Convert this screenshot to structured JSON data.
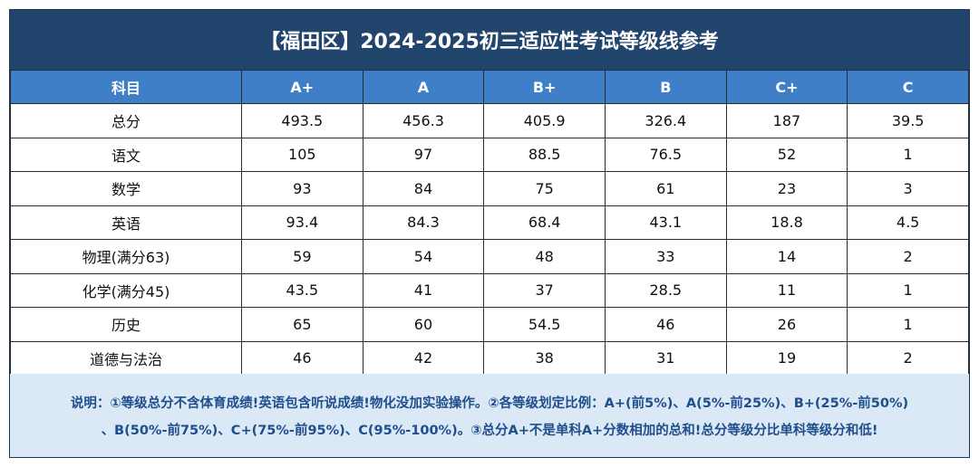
{
  "title": "【福田区】2024-2025初三适应性考试等级线参考",
  "table": {
    "headers": [
      "科目",
      "A+",
      "A",
      "B+",
      "B",
      "C+",
      "C"
    ],
    "rows": [
      [
        "总分",
        "493.5",
        "456.3",
        "405.9",
        "326.4",
        "187",
        "39.5"
      ],
      [
        "语文",
        "105",
        "97",
        "88.5",
        "76.5",
        "52",
        "1"
      ],
      [
        "数学",
        "93",
        "84",
        "75",
        "61",
        "23",
        "3"
      ],
      [
        "英语",
        "93.4",
        "84.3",
        "68.4",
        "43.1",
        "18.8",
        "4.5"
      ],
      [
        "物理(满分63)",
        "59",
        "54",
        "48",
        "33",
        "14",
        "2"
      ],
      [
        "化学(满分45)",
        "43.5",
        "41",
        "37",
        "28.5",
        "11",
        "1"
      ],
      [
        "历史",
        "65",
        "60",
        "54.5",
        "46",
        "26",
        "1"
      ],
      [
        "道德与法治",
        "46",
        "42",
        "38",
        "31",
        "19",
        "2"
      ]
    ]
  },
  "note": {
    "line1": "说明：①等级总分不含体育成绩!英语包含听说成绩!物化没加实验操作。②各等级划定比例：A+(前5%)、A(5%-前25%)、B+(25%-前50%)",
    "line2": "、B(50%-前75%)、C+(75%-前95%)、C(95%-100%)。③总分A+不是单科A+分数相加的总和!总分等级分比单科等级分和低!"
  }
}
